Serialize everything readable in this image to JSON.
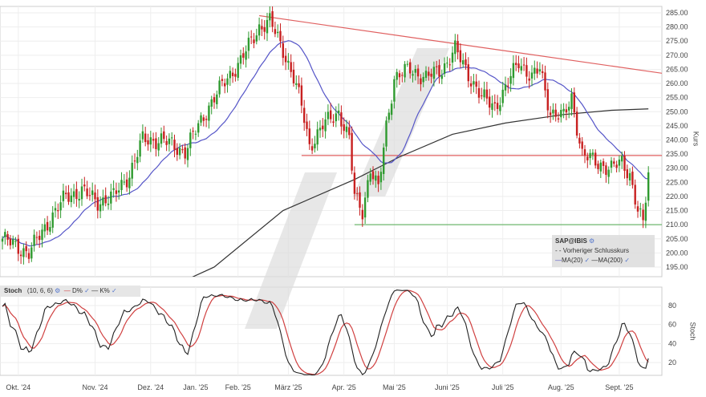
{
  "chart_data": {
    "type": "candlestick",
    "title": "SAP@IBIS",
    "ylabel": "Kurs",
    "ylim": [
      190,
      287
    ],
    "yticks": [
      195,
      200,
      205,
      210,
      215,
      220,
      225,
      230,
      235,
      240,
      245,
      250,
      255,
      260,
      265,
      270,
      275,
      280,
      285
    ],
    "ytick_labels": [
      "195.00",
      "200.00",
      "205.00",
      "210.00",
      "215.00",
      "220.00",
      "225.00",
      "230.00",
      "235.00",
      "240.00",
      "245.00",
      "250.00",
      "255.00",
      "260.00",
      "265.00",
      "270.00",
      "275.00",
      "280.00",
      "285.00"
    ],
    "xticks": [
      {
        "label": "Okt. '24",
        "day": 6
      },
      {
        "label": "Nov. '24",
        "day": 35
      },
      {
        "label": "Dez. '24",
        "day": 56
      },
      {
        "label": "Jan. '25",
        "day": 73
      },
      {
        "label": "Feb. '25",
        "day": 89
      },
      {
        "label": "März '25",
        "day": 108
      },
      {
        "label": "Apr. '25",
        "day": 129
      },
      {
        "label": "Mai '25",
        "day": 148
      },
      {
        "label": "Juni '25",
        "day": 168
      },
      {
        "label": "Juli '25",
        "day": 189
      },
      {
        "label": "Aug. '25",
        "day": 211
      },
      {
        "label": "Sept. '25",
        "day": 233
      }
    ],
    "close_keypoints": [
      [
        0,
        205
      ],
      [
        6,
        202
      ],
      [
        10,
        200
      ],
      [
        18,
        212
      ],
      [
        24,
        220
      ],
      [
        30,
        222
      ],
      [
        36,
        218
      ],
      [
        42,
        220
      ],
      [
        48,
        228
      ],
      [
        53,
        240
      ],
      [
        60,
        240
      ],
      [
        69,
        236
      ],
      [
        74,
        245
      ],
      [
        78,
        252
      ],
      [
        85,
        262
      ],
      [
        90,
        268
      ],
      [
        97,
        280
      ],
      [
        101,
        282
      ],
      [
        106,
        272
      ],
      [
        110,
        262
      ],
      [
        113,
        252
      ],
      [
        116,
        238
      ],
      [
        121,
        245
      ],
      [
        127,
        250
      ],
      [
        131,
        240
      ],
      [
        133,
        220
      ],
      [
        136,
        215
      ],
      [
        139,
        230
      ],
      [
        142,
        222
      ],
      [
        145,
        245
      ],
      [
        148,
        262
      ],
      [
        154,
        265
      ],
      [
        160,
        262
      ],
      [
        166,
        265
      ],
      [
        171,
        272
      ],
      [
        175,
        265
      ],
      [
        181,
        255
      ],
      [
        186,
        252
      ],
      [
        190,
        258
      ],
      [
        195,
        268
      ],
      [
        200,
        262
      ],
      [
        203,
        265
      ],
      [
        207,
        250
      ],
      [
        212,
        248
      ],
      [
        215,
        255
      ],
      [
        219,
        235
      ],
      [
        224,
        232
      ],
      [
        230,
        230
      ],
      [
        234,
        232
      ],
      [
        237,
        228
      ],
      [
        240,
        215
      ],
      [
        242,
        210
      ],
      [
        244,
        228
      ]
    ],
    "ma200_keypoints": [
      [
        45,
        180
      ],
      [
        80,
        195
      ],
      [
        106,
        215
      ],
      [
        133,
        226
      ],
      [
        150,
        234
      ],
      [
        170,
        242
      ],
      [
        190,
        246
      ],
      [
        212,
        249
      ],
      [
        230,
        250.5
      ],
      [
        244,
        251
      ]
    ],
    "trendlines": [
      {
        "name": "Widerstand",
        "type": "line",
        "from": [
          97,
          284
        ],
        "to": [
          250,
          263.5
        ],
        "color": "#e06060"
      },
      {
        "name": "Unterstützung",
        "type": "horizontal",
        "value": 234.5,
        "from_day": 113,
        "color": "#e06060"
      },
      {
        "name": "Tief",
        "type": "horizontal",
        "value": 210,
        "from_day": 133,
        "color": "#6fb86f"
      }
    ],
    "stoch": {
      "label": "Stoch",
      "params": "(10, 6, 6)",
      "d_label": "D%",
      "k_label": "K%",
      "ylabel": "Stoch",
      "yticks": [
        20,
        40,
        60,
        80
      ],
      "ytick_labels": [
        "20",
        "40",
        "60",
        "80"
      ],
      "ylim": [
        0,
        100
      ]
    },
    "legend": {
      "title": "SAP@IBIS",
      "prev_close": "Vorheriger Schlusskurs",
      "ma20": "MA(20)",
      "ma200": "MA(200)"
    },
    "colors": {
      "up": "#2f9a2f",
      "down": "#c82020",
      "ma20": "#5555c8",
      "ma200": "#333333",
      "k": "#222222",
      "d": "#d04040"
    }
  }
}
